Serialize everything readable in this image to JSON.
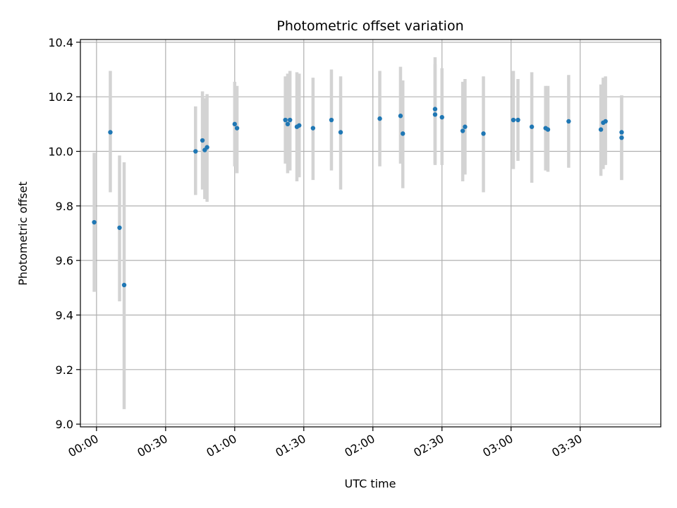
{
  "chart_data": {
    "type": "scatter",
    "title": "Photometric offset variation",
    "xlabel": "UTC time",
    "ylabel": "Photometric offset",
    "x_unit": "UTC time of day (HH:MM)",
    "xlim": [
      "23:53",
      "04:05"
    ],
    "ylim": [
      8.99,
      10.41
    ],
    "x_ticks": [
      "00:00",
      "00:30",
      "01:00",
      "01:30",
      "02:00",
      "02:30",
      "03:00",
      "03:30"
    ],
    "y_ticks": [
      9.0,
      9.2,
      9.4,
      9.6,
      9.8,
      10.0,
      10.2,
      10.4
    ],
    "y_tick_labels": [
      "9.0",
      "9.2",
      "9.4",
      "9.6",
      "9.8",
      "10.0",
      "10.2",
      "10.4"
    ],
    "grid": true,
    "legend": "none",
    "colors": {
      "points": "#1f77b4",
      "error_bars": "#d3d3d3",
      "grid": "#b0b0b0",
      "axes": "#000000"
    },
    "series": [
      {
        "points": [
          {
            "x": "23:59",
            "y": 9.74,
            "ylow": 9.485,
            "yhigh": 9.995
          },
          {
            "x": "00:06",
            "y": 10.07,
            "ylow": 9.85,
            "yhigh": 10.295
          },
          {
            "x": "00:10",
            "y": 9.72,
            "ylow": 9.45,
            "yhigh": 9.985
          },
          {
            "x": "00:12",
            "y": 9.51,
            "ylow": 9.055,
            "yhigh": 9.96
          },
          {
            "x": "00:43",
            "y": 10.0,
            "ylow": 9.84,
            "yhigh": 10.165
          },
          {
            "x": "00:46",
            "y": 10.04,
            "ylow": 9.86,
            "yhigh": 10.22
          },
          {
            "x": "00:47",
            "y": 10.005,
            "ylow": 9.825,
            "yhigh": 10.195
          },
          {
            "x": "00:48",
            "y": 10.015,
            "ylow": 9.815,
            "yhigh": 10.21
          },
          {
            "x": "01:00",
            "y": 10.1,
            "ylow": 9.945,
            "yhigh": 10.255
          },
          {
            "x": "01:01",
            "y": 10.085,
            "ylow": 9.92,
            "yhigh": 10.24
          },
          {
            "x": "01:22",
            "y": 10.115,
            "ylow": 9.955,
            "yhigh": 10.275
          },
          {
            "x": "01:23",
            "y": 10.1,
            "ylow": 9.92,
            "yhigh": 10.285
          },
          {
            "x": "01:24",
            "y": 10.115,
            "ylow": 9.93,
            "yhigh": 10.295
          },
          {
            "x": "01:27",
            "y": 10.09,
            "ylow": 9.89,
            "yhigh": 10.29
          },
          {
            "x": "01:28",
            "y": 10.095,
            "ylow": 9.905,
            "yhigh": 10.285
          },
          {
            "x": "01:34",
            "y": 10.085,
            "ylow": 9.895,
            "yhigh": 10.27
          },
          {
            "x": "01:42",
            "y": 10.115,
            "ylow": 9.93,
            "yhigh": 10.3
          },
          {
            "x": "01:46",
            "y": 10.07,
            "ylow": 9.86,
            "yhigh": 10.275
          },
          {
            "x": "02:03",
            "y": 10.12,
            "ylow": 9.945,
            "yhigh": 10.295
          },
          {
            "x": "02:12",
            "y": 10.13,
            "ylow": 9.955,
            "yhigh": 10.31
          },
          {
            "x": "02:13",
            "y": 10.065,
            "ylow": 9.865,
            "yhigh": 10.26
          },
          {
            "x": "02:27",
            "y": 10.155,
            "ylow": 9.955,
            "yhigh": 10.345
          },
          {
            "x": "02:27",
            "y": 10.135,
            "ylow": 9.95,
            "yhigh": 10.32
          },
          {
            "x": "02:30",
            "y": 10.125,
            "ylow": 9.95,
            "yhigh": 10.305
          },
          {
            "x": "02:39",
            "y": 10.075,
            "ylow": 9.89,
            "yhigh": 10.255
          },
          {
            "x": "02:40",
            "y": 10.09,
            "ylow": 9.915,
            "yhigh": 10.265
          },
          {
            "x": "02:48",
            "y": 10.065,
            "ylow": 9.85,
            "yhigh": 10.275
          },
          {
            "x": "03:01",
            "y": 10.115,
            "ylow": 9.935,
            "yhigh": 10.295
          },
          {
            "x": "03:03",
            "y": 10.115,
            "ylow": 9.965,
            "yhigh": 10.265
          },
          {
            "x": "03:09",
            "y": 10.09,
            "ylow": 9.885,
            "yhigh": 10.29
          },
          {
            "x": "03:15",
            "y": 10.085,
            "ylow": 9.93,
            "yhigh": 10.24
          },
          {
            "x": "03:16",
            "y": 10.08,
            "ylow": 9.925,
            "yhigh": 10.24
          },
          {
            "x": "03:25",
            "y": 10.11,
            "ylow": 9.94,
            "yhigh": 10.28
          },
          {
            "x": "03:39",
            "y": 10.08,
            "ylow": 9.91,
            "yhigh": 10.245
          },
          {
            "x": "03:40",
            "y": 10.105,
            "ylow": 9.935,
            "yhigh": 10.27
          },
          {
            "x": "03:41",
            "y": 10.11,
            "ylow": 9.95,
            "yhigh": 10.275
          },
          {
            "x": "03:48",
            "y": 10.07,
            "ylow": 9.895,
            "yhigh": 10.205
          },
          {
            "x": "03:48",
            "y": 10.05,
            "ylow": 9.895,
            "yhigh": 10.205
          }
        ]
      }
    ]
  }
}
